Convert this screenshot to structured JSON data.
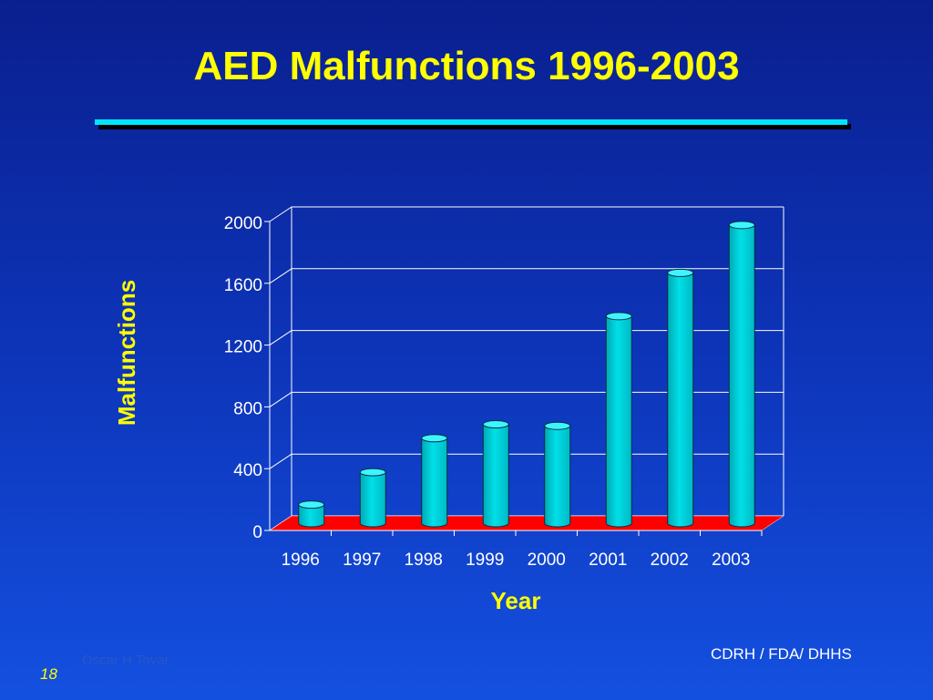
{
  "slide": {
    "title": "AED Malfunctions 1996-2003",
    "author": "Oscar H Tovar",
    "page_number": "18",
    "footer_right": "CDRH / FDA/ DHHS"
  },
  "colors": {
    "background": "#0d34b8",
    "title": "#ffff00",
    "rule": "#00e5ff",
    "bar": "#00e0e8",
    "floor": "#ff0000"
  },
  "chart_data": {
    "type": "bar",
    "title": "AED Malfunctions 1996-2003",
    "xlabel": "Year",
    "ylabel": "Malfunctions",
    "categories": [
      "1996",
      "1997",
      "1998",
      "1999",
      "2000",
      "2001",
      "2002",
      "2003"
    ],
    "values": [
      120,
      330,
      550,
      640,
      630,
      1340,
      1620,
      1930
    ],
    "yticks": [
      "0",
      "400",
      "800",
      "1200",
      "1600",
      "2000"
    ],
    "ylim": [
      0,
      2000
    ],
    "grid": true,
    "style": "3d-cylinder"
  }
}
